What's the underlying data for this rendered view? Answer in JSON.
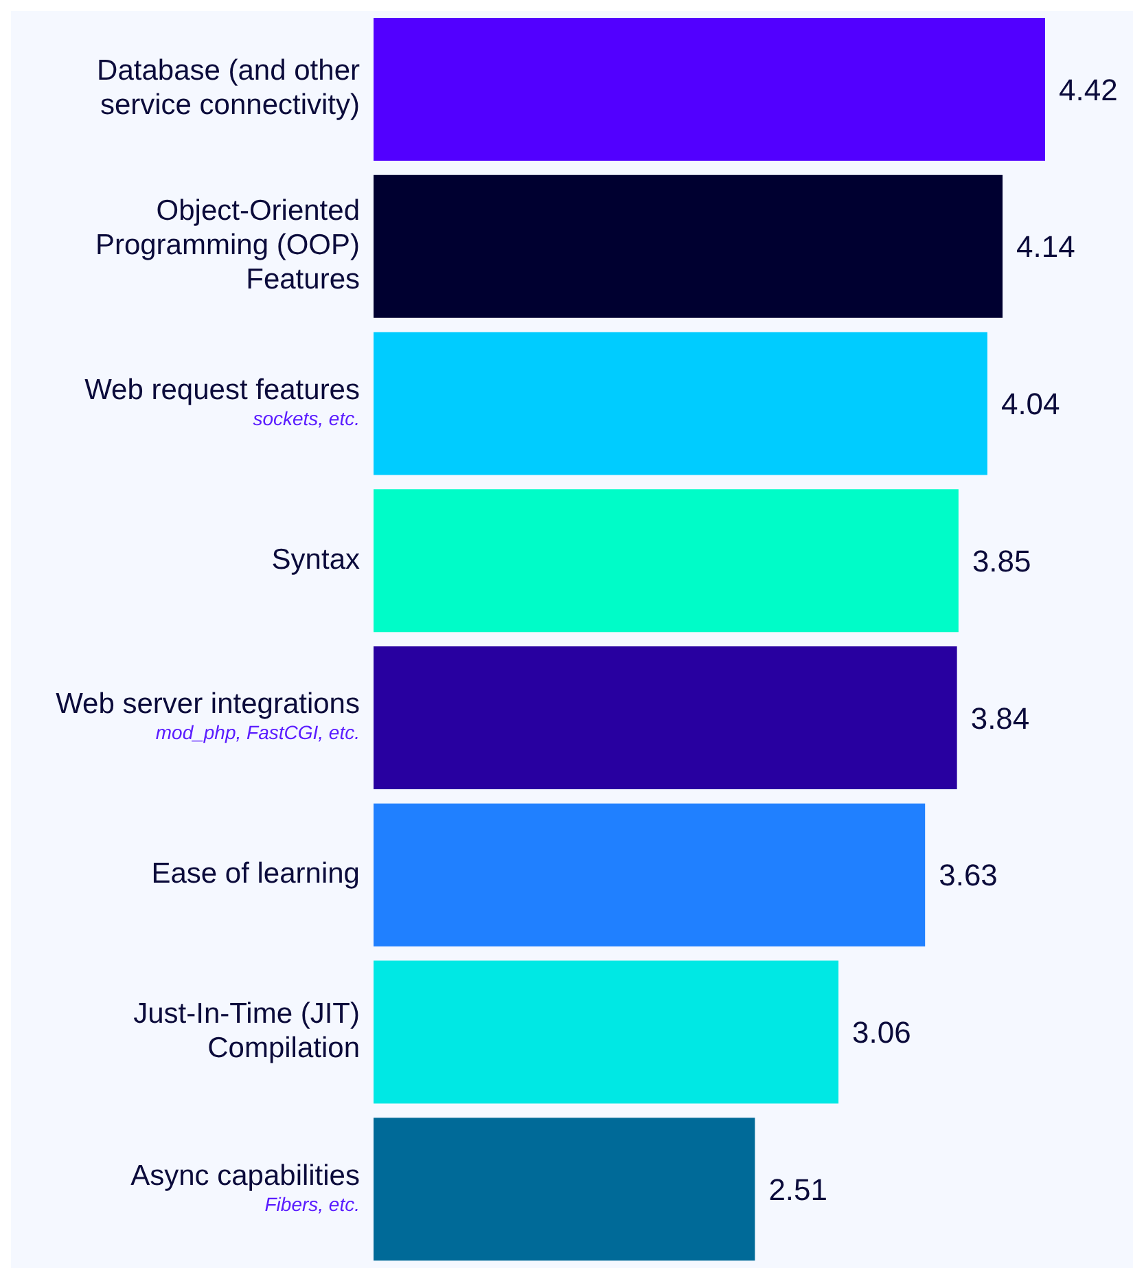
{
  "chart_data": {
    "type": "bar",
    "orientation": "horizontal",
    "categories": [
      "Database (and other service connectivity)",
      "Object-Oriented Programming (OOP) Features",
      "Web request features\nsockets, etc.",
      "Syntax",
      "Web server integrations\nmod_php, FastCGI, etc.",
      "Ease of learning",
      "Just-In-Time (JIT) Compilation",
      "Async capabilities\nFibers, etc."
    ],
    "values": [
      4.42,
      4.14,
      4.04,
      3.85,
      3.84,
      3.63,
      3.06,
      2.51
    ],
    "colors": [
      "#5200ff",
      "#000030",
      "#00ccff",
      "#00fcc8",
      "#2800a0",
      "#2080ff",
      "#00e8e4",
      "#006a98"
    ],
    "data_labels": true
  }
}
